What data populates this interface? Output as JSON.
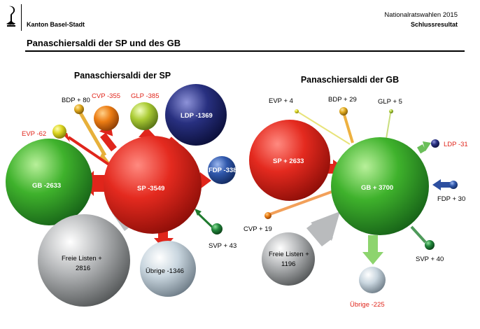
{
  "header": {
    "canton": "Kanton Basel-Stadt",
    "election": "Nationalratswahlen 2015",
    "result": "Schlussresultat",
    "page_title": "Panaschiersaldi der SP und des GB"
  },
  "colors": {
    "red": "#e0251b",
    "green": "#3aae2a",
    "grey": "#a9abad",
    "navy": "#22286e",
    "blue": "#2d4fa0",
    "orange": "#e77a13",
    "yellow": "#d9d21f",
    "gold": "#e0a91d",
    "lightgreen": "#a8c832",
    "darkgreen": "#1f7a2e",
    "lightgrey": "#c6d3dd",
    "negative_label": "#e0251b"
  },
  "diagrams": [
    {
      "title": "Panaschiersaldi der SP",
      "center": {
        "party": "SP",
        "label": "SP -3549",
        "value": -3549
      },
      "flows": [
        {
          "party": "BDP",
          "label": "BDP + 80",
          "value": 80
        },
        {
          "party": "CVP",
          "label": "CVP -355",
          "value": -355
        },
        {
          "party": "GLP",
          "label": "GLP -385",
          "value": -385
        },
        {
          "party": "LDP",
          "label": "LDP -1369",
          "value": -1369
        },
        {
          "party": "EVP",
          "label": "EVP -62",
          "value": -62
        },
        {
          "party": "GB",
          "label": "GB -2633",
          "value": -2633
        },
        {
          "party": "FDP",
          "label": "FDP -338",
          "value": -338
        },
        {
          "party": "SVP",
          "label": "SVP + 43",
          "value": 43
        },
        {
          "party": "Freie Listen",
          "label_lines": [
            "Freie Listen +",
            "2816"
          ],
          "value": 2816
        },
        {
          "party": "Übrige",
          "label": "Übrige -1346",
          "value": -1346
        }
      ]
    },
    {
      "title": "Panaschiersaldi der GB",
      "center": {
        "party": "GB",
        "label": "GB + 3700",
        "value": 3700
      },
      "flows": [
        {
          "party": "EVP",
          "label": "EVP + 4",
          "value": 4
        },
        {
          "party": "BDP",
          "label": "BDP + 29",
          "value": 29
        },
        {
          "party": "GLP",
          "label": "GLP + 5",
          "value": 5
        },
        {
          "party": "LDP",
          "label": "LDP  -31",
          "value": -31
        },
        {
          "party": "SP",
          "label": "SP + 2633",
          "value": 2633
        },
        {
          "party": "FDP",
          "label": "FDP + 30",
          "value": 30
        },
        {
          "party": "CVP",
          "label": "CVP + 19",
          "value": 19
        },
        {
          "party": "SVP",
          "label": "SVP + 40",
          "value": 40
        },
        {
          "party": "Freie Listen",
          "label_lines": [
            "Freie Listen +",
            "1196"
          ],
          "value": 1196
        },
        {
          "party": "Übrige",
          "label": "Übrige  -225",
          "value": -225
        }
      ]
    }
  ]
}
